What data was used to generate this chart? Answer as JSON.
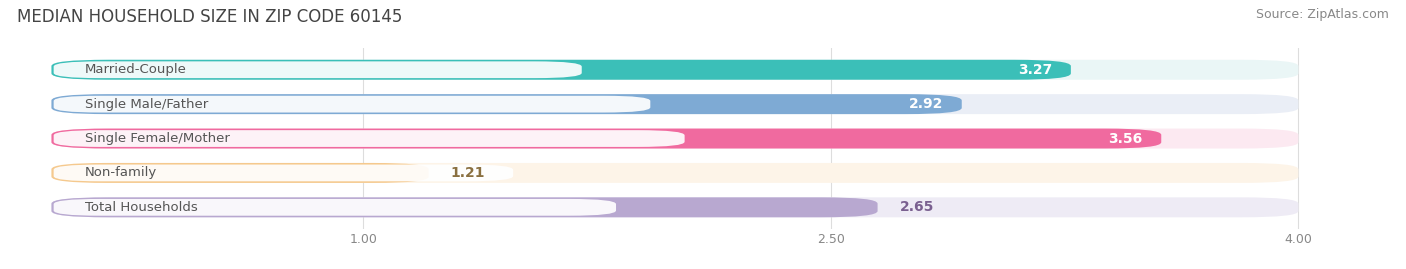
{
  "title": "MEDIAN HOUSEHOLD SIZE IN ZIP CODE 60145",
  "source": "Source: ZipAtlas.com",
  "categories": [
    "Married-Couple",
    "Single Male/Father",
    "Single Female/Mother",
    "Non-family",
    "Total Households"
  ],
  "values": [
    3.27,
    2.92,
    3.56,
    1.21,
    2.65
  ],
  "bar_colors": [
    "#3bbfb8",
    "#7eaad4",
    "#f06a9f",
    "#f5c98e",
    "#b8a8d0"
  ],
  "bar_bg_colors": [
    "#eaf6f6",
    "#eaeef6",
    "#fce9f1",
    "#fdf4e8",
    "#eeebf5"
  ],
  "xmin": 0.0,
  "xmax": 4.0,
  "xlim_left": -0.12,
  "xlim_right": 4.3,
  "xticks": [
    1.0,
    2.5,
    4.0
  ],
  "xticklabels": [
    "1.00",
    "2.50",
    "4.00"
  ],
  "label_color": "#ffffff",
  "title_fontsize": 12,
  "source_fontsize": 9,
  "bar_label_fontsize": 10,
  "category_fontsize": 9.5,
  "tick_fontsize": 9,
  "bar_height": 0.58,
  "background_color": "#ffffff",
  "text_color": "#555555",
  "value_label_color": "#ffffff",
  "non_family_value_color": "#8a7040"
}
